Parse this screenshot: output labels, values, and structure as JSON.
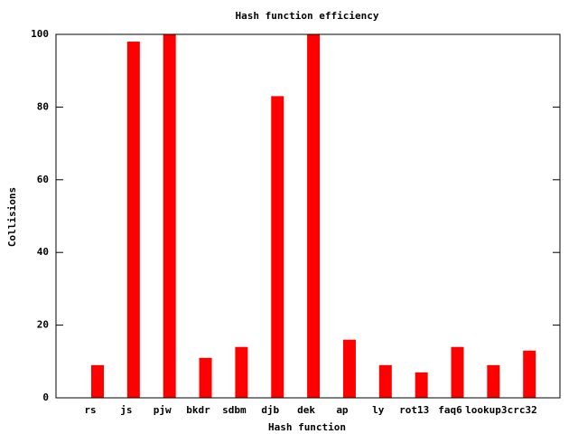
{
  "chart_data": {
    "type": "bar",
    "title": "Hash function efficiency",
    "x_label": "Hash function",
    "y_label": "Collisions",
    "categories": [
      "rs",
      "js",
      "pjw",
      "bkdr",
      "sdbm",
      "djb",
      "dek",
      "ap",
      "ly",
      "rot13",
      "faq6",
      "lookup3",
      "crc32"
    ],
    "values": [
      9,
      98,
      100,
      11,
      14,
      83,
      100,
      16,
      9,
      7,
      14,
      9,
      13
    ],
    "color": "#ff0000",
    "ylim": [
      0,
      100
    ],
    "yticks": [
      0,
      20,
      40,
      60,
      80,
      100
    ],
    "grid": false
  }
}
